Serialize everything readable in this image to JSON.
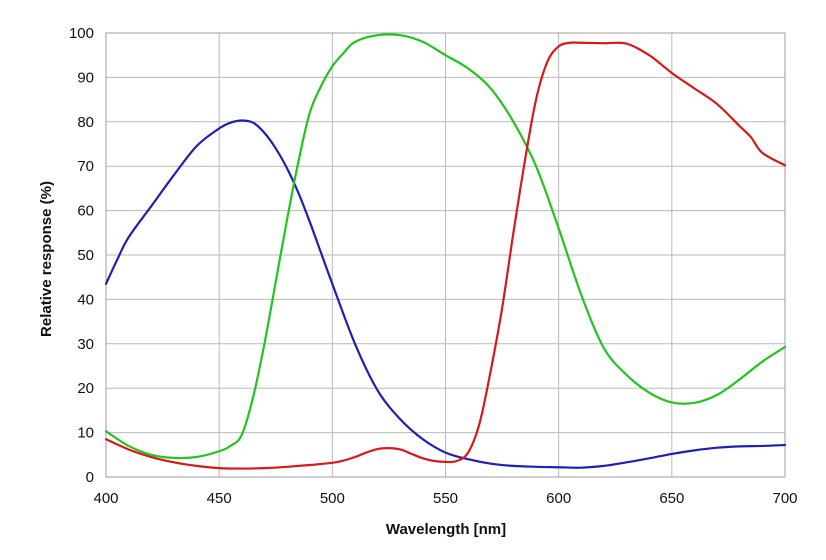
{
  "chart_data": {
    "type": "line",
    "title": "",
    "xlabel": "Wavelength [nm]",
    "ylabel": "Relative response (%)",
    "xlim": [
      400,
      700
    ],
    "ylim": [
      0,
      100
    ],
    "xticks": [
      400,
      450,
      500,
      550,
      600,
      650,
      700
    ],
    "yticks": [
      0,
      10,
      20,
      30,
      40,
      50,
      60,
      70,
      80,
      90,
      100
    ],
    "grid": true,
    "legend": "none",
    "series": [
      {
        "name": "Blue",
        "color": "#1f1fb0",
        "x": [
          400,
          405,
          410,
          420,
          430,
          440,
          450,
          455,
          460,
          465,
          470,
          475,
          480,
          485,
          490,
          495,
          500,
          510,
          520,
          530,
          540,
          550,
          560,
          570,
          580,
          590,
          600,
          610,
          620,
          630,
          640,
          650,
          660,
          670,
          680,
          690,
          700
        ],
        "y": [
          43.5,
          49,
          54,
          61,
          68,
          74.5,
          78.5,
          79.8,
          80.3,
          79.8,
          77.5,
          74,
          69.5,
          64,
          57.5,
          50.5,
          43.5,
          30,
          19.5,
          13,
          8.5,
          5.5,
          4,
          3,
          2.5,
          2.3,
          2.2,
          2.1,
          2.5,
          3.3,
          4.2,
          5.2,
          6,
          6.6,
          6.9,
          7,
          7.2
        ]
      },
      {
        "name": "Green",
        "color": "#22c41e",
        "x": [
          400,
          410,
          420,
          430,
          440,
          450,
          455,
          460,
          465,
          470,
          475,
          480,
          485,
          490,
          495,
          500,
          505,
          510,
          520,
          530,
          540,
          550,
          560,
          570,
          580,
          590,
          600,
          610,
          620,
          630,
          640,
          650,
          660,
          670,
          680,
          690,
          700
        ],
        "y": [
          10.3,
          7,
          5,
          4.3,
          4.5,
          5.8,
          7,
          9.5,
          18,
          30,
          44,
          58,
          71,
          82,
          88,
          92.5,
          95.5,
          98,
          99.5,
          99.5,
          98,
          95,
          92,
          87.5,
          80,
          70,
          56,
          41,
          29,
          23,
          19,
          16.8,
          16.7,
          18.5,
          22,
          26,
          29.3
        ]
      },
      {
        "name": "Red",
        "color": "#d41a1a",
        "x": [
          400,
          410,
          420,
          430,
          440,
          450,
          460,
          470,
          480,
          490,
          500,
          505,
          510,
          515,
          520,
          525,
          530,
          535,
          540,
          545,
          550,
          555,
          560,
          565,
          570,
          575,
          580,
          585,
          590,
          595,
          600,
          605,
          610,
          620,
          630,
          640,
          650,
          660,
          670,
          680,
          685,
          690,
          700
        ],
        "y": [
          8.5,
          6.2,
          4.5,
          3.3,
          2.5,
          2,
          1.9,
          2,
          2.3,
          2.7,
          3.2,
          3.7,
          4.5,
          5.5,
          6.3,
          6.5,
          6.2,
          5.2,
          4.2,
          3.6,
          3.4,
          3.6,
          5.5,
          12,
          24,
          38,
          55,
          71,
          85,
          93.5,
          97,
          97.8,
          97.8,
          97.7,
          97.6,
          95,
          91,
          87.5,
          84,
          79,
          76.5,
          73,
          70.2
        ]
      }
    ]
  }
}
